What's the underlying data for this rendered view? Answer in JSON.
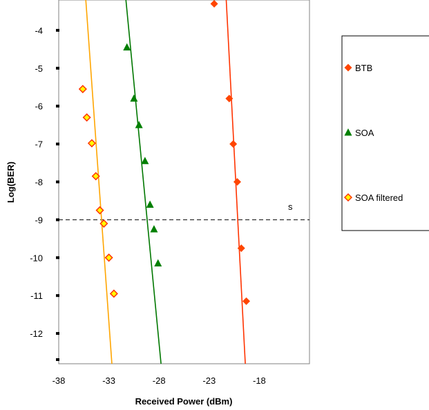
{
  "chart_data": {
    "type": "scatter",
    "xlabel": "Received Power (dBm)",
    "ylabel": "Log(BER)",
    "xlim": [
      -38,
      -13
    ],
    "ylim": [
      -12.8,
      -3.2
    ],
    "x_ticks": [
      -38,
      -33,
      -28,
      -23,
      -18
    ],
    "x_tick_labels": [
      "-38",
      "-33",
      "-28",
      "-23",
      "-18"
    ],
    "y_ticks": [
      -4,
      -5,
      -6,
      -7,
      -8,
      -9,
      -10,
      -11,
      -12
    ],
    "y_tick_labels": [
      "-4",
      "-5",
      "-6",
      "-7",
      "-8",
      "-9",
      "-10",
      "-11",
      "-12"
    ],
    "threshold_y": -9,
    "annotation_text": "s",
    "grid": false,
    "legend_position": "right",
    "series": [
      {
        "name": "BTB",
        "marker": "diamond",
        "color": "#ff4500",
        "points": [
          [
            -22.5,
            -3.3
          ],
          [
            -21.0,
            -5.8
          ],
          [
            -20.6,
            -7.0
          ],
          [
            -20.2,
            -8.0
          ],
          [
            -19.8,
            -9.75
          ],
          [
            -19.3,
            -11.15
          ]
        ],
        "fit_line": [
          [
            -21.3,
            -3.2
          ],
          [
            -19.4,
            -12.8
          ]
        ],
        "line_color": "#ff3300"
      },
      {
        "name": "SOA",
        "marker": "triangle",
        "color": "#007f00",
        "points": [
          [
            -31.2,
            -4.45
          ],
          [
            -30.5,
            -5.8
          ],
          [
            -30.0,
            -6.5
          ],
          [
            -29.4,
            -7.45
          ],
          [
            -28.9,
            -8.6
          ],
          [
            -28.5,
            -9.25
          ],
          [
            -28.1,
            -10.15
          ]
        ],
        "fit_line": [
          [
            -31.3,
            -3.2
          ],
          [
            -27.8,
            -12.8
          ]
        ],
        "line_color": "#007700"
      },
      {
        "name": "SOA filtered",
        "marker": "diamond-outline",
        "color": "#ffff00",
        "stroke": "#ff3300",
        "points": [
          [
            -35.6,
            -5.55
          ],
          [
            -35.2,
            -6.3
          ],
          [
            -34.7,
            -6.98
          ],
          [
            -34.3,
            -7.85
          ],
          [
            -33.9,
            -8.75
          ],
          [
            -33.5,
            -9.1
          ],
          [
            -33.0,
            -10.0
          ],
          [
            -32.5,
            -10.95
          ]
        ],
        "fit_line": [
          [
            -35.3,
            -3.2
          ],
          [
            -32.7,
            -12.8
          ]
        ],
        "line_color": "#ffa500"
      }
    ]
  }
}
